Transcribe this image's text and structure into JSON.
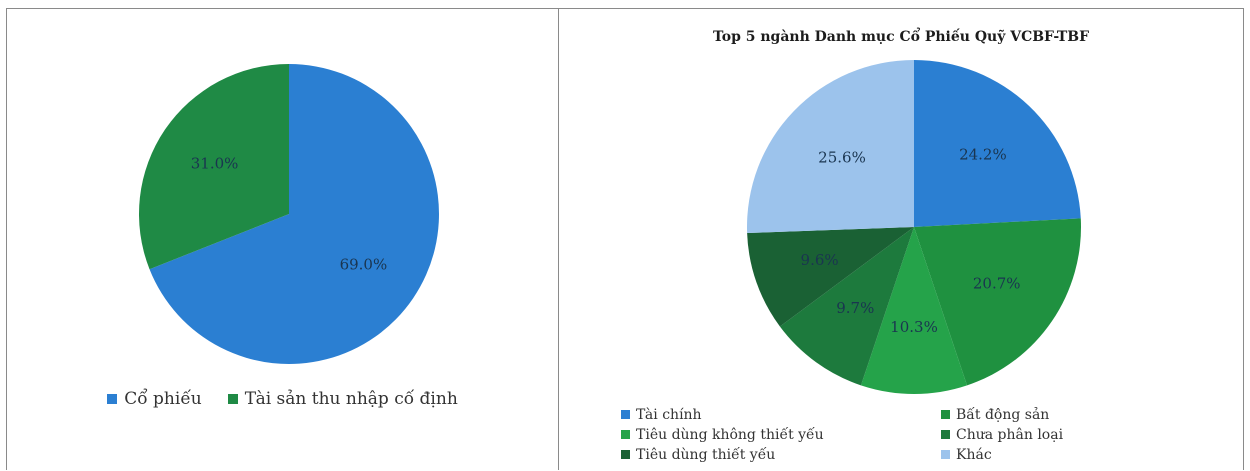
{
  "chart_data": [
    {
      "type": "pie",
      "title": "",
      "categories": [
        "Cổ phiếu",
        "Tài sản thu nhập cố định"
      ],
      "values": [
        69.0,
        31.0
      ],
      "labels": [
        "69.0%",
        "31.0%"
      ],
      "colors": [
        "#2b7fd2",
        "#1f8a45"
      ],
      "legend": "bottom"
    },
    {
      "type": "pie",
      "title": "Top 5 ngành Danh mục Cổ Phiếu Quỹ VCBF-TBF",
      "categories": [
        "Tài chính",
        "Bất động sản",
        "Tiêu dùng không thiết yếu",
        "Chưa phân loại",
        "Tiêu dùng thiết yếu",
        "Khác"
      ],
      "values": [
        24.2,
        20.7,
        10.3,
        9.7,
        9.6,
        25.6
      ],
      "labels": [
        "24.2%",
        "20.7%",
        "10.3%",
        "9.7%",
        "9.6%",
        "25.6%"
      ],
      "colors": [
        "#2b7fd2",
        "#1f9140",
        "#25a34a",
        "#1d7a3d",
        "#1a6134",
        "#9cc3ec"
      ],
      "legend": "bottom"
    }
  ]
}
